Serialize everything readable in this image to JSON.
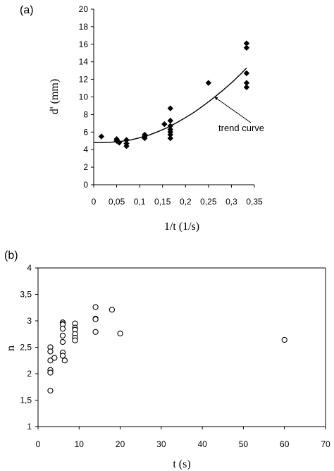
{
  "chart_data": [
    {
      "panel_label": "(a)",
      "type": "scatter",
      "xlabel": "1/t (1/s)",
      "ylabel": "d' (mm)",
      "xlim": [
        0,
        0.35
      ],
      "ylim": [
        0,
        20
      ],
      "x_ticks": [
        "0",
        "0,05",
        "0,1",
        "0,15",
        "0,2",
        "0,25",
        "0,3",
        "0,35"
      ],
      "x_tick_values": [
        0,
        0.05,
        0.1,
        0.15,
        0.2,
        0.25,
        0.3,
        0.35
      ],
      "y_ticks": [
        "0",
        "2",
        "4",
        "6",
        "8",
        "10",
        "12",
        "14",
        "16",
        "18",
        "20"
      ],
      "y_tick_values": [
        0,
        2,
        4,
        6,
        8,
        10,
        12,
        14,
        16,
        18,
        20
      ],
      "marker": "filled-diamond",
      "points": [
        [
          0.0167,
          5.5
        ],
        [
          0.05,
          5.2
        ],
        [
          0.05,
          5.0
        ],
        [
          0.0556,
          4.8
        ],
        [
          0.0714,
          5.1
        ],
        [
          0.0714,
          4.7
        ],
        [
          0.0714,
          4.4
        ],
        [
          0.111,
          5.7
        ],
        [
          0.111,
          5.5
        ],
        [
          0.111,
          5.3
        ],
        [
          0.154,
          6.9
        ],
        [
          0.167,
          8.7
        ],
        [
          0.167,
          7.3
        ],
        [
          0.167,
          6.7
        ],
        [
          0.167,
          6.3
        ],
        [
          0.167,
          6.0
        ],
        [
          0.167,
          5.7
        ],
        [
          0.167,
          5.3
        ],
        [
          0.25,
          11.6
        ],
        [
          0.333,
          16.1
        ],
        [
          0.333,
          15.6
        ],
        [
          0.333,
          12.7
        ],
        [
          0.333,
          11.6
        ],
        [
          0.333,
          11.1
        ]
      ],
      "trend_curve": {
        "label": "trend curve",
        "x": [
          0.0,
          0.02,
          0.04,
          0.06,
          0.08,
          0.1,
          0.12,
          0.14,
          0.16,
          0.18,
          0.2,
          0.22,
          0.24,
          0.26,
          0.28,
          0.3,
          0.32,
          0.333
        ],
        "y": [
          4.8,
          4.8,
          4.85,
          4.95,
          5.1,
          5.35,
          5.65,
          6.05,
          6.5,
          7.05,
          7.65,
          8.3,
          9.05,
          9.85,
          10.7,
          11.6,
          12.6,
          13.3
        ]
      }
    },
    {
      "panel_label": "(b)",
      "type": "scatter",
      "xlabel": "t (s)",
      "ylabel": "n",
      "xlim": [
        0,
        70
      ],
      "ylim": [
        1,
        4
      ],
      "x_ticks": [
        "0",
        "10",
        "20",
        "30",
        "40",
        "50",
        "60",
        "70"
      ],
      "x_tick_values": [
        0,
        10,
        20,
        30,
        40,
        50,
        60,
        70
      ],
      "y_ticks": [
        "1",
        "1,5",
        "2",
        "2,5",
        "3",
        "3,5",
        "4"
      ],
      "y_tick_values": [
        1,
        1.5,
        2,
        2.5,
        3,
        3.5,
        4
      ],
      "marker": "open-circle",
      "points": [
        [
          3,
          2.5
        ],
        [
          3,
          2.42
        ],
        [
          3,
          2.25
        ],
        [
          3,
          2.07
        ],
        [
          3,
          2.02
        ],
        [
          3,
          1.68
        ],
        [
          4,
          2.3
        ],
        [
          6,
          2.97
        ],
        [
          6,
          2.94
        ],
        [
          6,
          2.93
        ],
        [
          6,
          2.85
        ],
        [
          6,
          2.72
        ],
        [
          6,
          2.6
        ],
        [
          6,
          2.4
        ],
        [
          6,
          2.34
        ],
        [
          6.5,
          2.25
        ],
        [
          9,
          2.95
        ],
        [
          9,
          2.87
        ],
        [
          9,
          2.83
        ],
        [
          9,
          2.75
        ],
        [
          9,
          2.68
        ],
        [
          9,
          2.63
        ],
        [
          14,
          3.26
        ],
        [
          14,
          3.04
        ],
        [
          14,
          3.03
        ],
        [
          14,
          2.79
        ],
        [
          18,
          3.21
        ],
        [
          20,
          2.76
        ],
        [
          60,
          2.64
        ]
      ]
    }
  ]
}
